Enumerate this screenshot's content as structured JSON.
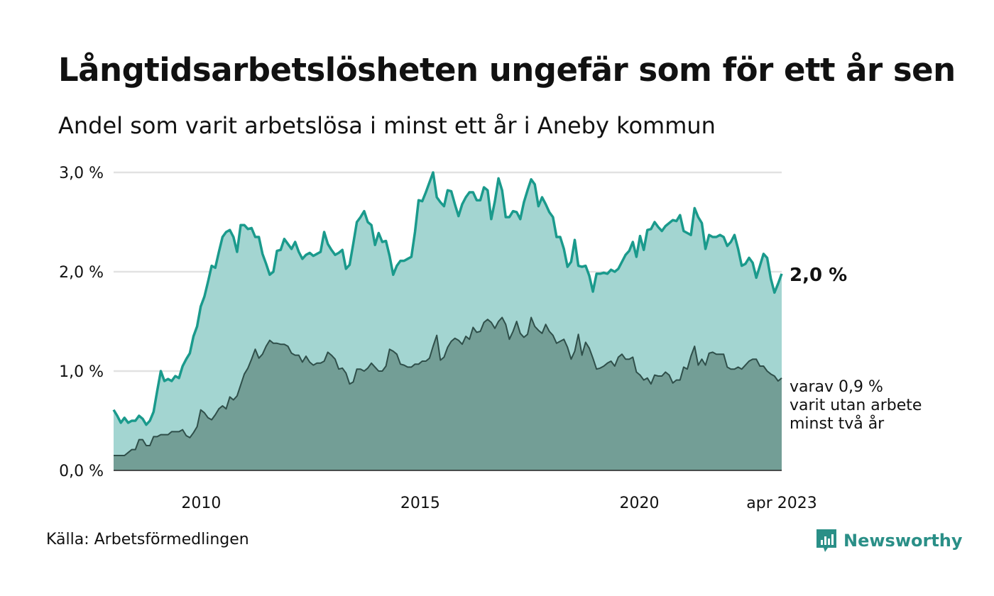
{
  "header": {
    "title": "Långtidsarbetslösheten ungefär som för ett år sen",
    "subtitle": "Andel som varit arbetslösa i minst ett år i Aneby kommun"
  },
  "footer": {
    "source": "Källa: Arbetsförmedlingen",
    "brand": "Newsworthy",
    "brand_icon": "bar-chart-speech-bubble-icon"
  },
  "colors": {
    "main_line": "#1a9a8c",
    "main_fill": "#a3d5d1",
    "sub_line": "#2f4f4a",
    "sub_fill": "#739e96",
    "grid": "#e2e2e2",
    "brand": "#2a8f87"
  },
  "chart_data": {
    "type": "area",
    "x_start": "2008-01",
    "x_end": "2023-04",
    "ylim": [
      0,
      3
    ],
    "y_ticks": [
      0,
      1,
      2,
      3
    ],
    "y_tick_labels": [
      "0,0 %",
      "1,0 %",
      "2,0 %",
      "3,0 %"
    ],
    "x_ticks": [
      2010,
      2015,
      2020
    ],
    "x_tick_labels": [
      "2010",
      "2015",
      "2020"
    ],
    "x_end_label": "apr 2023",
    "grid": true,
    "series": [
      {
        "key": "main",
        "end_label": "2,0 %",
        "values": [
          0.61,
          0.55,
          0.48,
          0.53,
          0.48,
          0.5,
          0.5,
          0.55,
          0.52,
          0.46,
          0.5,
          0.59,
          0.8,
          1.0,
          0.9,
          0.92,
          0.9,
          0.95,
          0.93,
          1.05,
          1.12,
          1.18,
          1.35,
          1.45,
          1.65,
          1.75,
          1.9,
          2.06,
          2.04,
          2.2,
          2.35,
          2.4,
          2.42,
          2.35,
          2.2,
          2.47,
          2.47,
          2.43,
          2.44,
          2.35,
          2.35,
          2.18,
          2.08,
          1.97,
          2.0,
          2.21,
          2.22,
          2.33,
          2.28,
          2.23,
          2.3,
          2.2,
          2.13,
          2.17,
          2.19,
          2.16,
          2.18,
          2.2,
          2.4,
          2.28,
          2.22,
          2.17,
          2.19,
          2.22,
          2.03,
          2.07,
          2.28,
          2.5,
          2.55,
          2.61,
          2.5,
          2.47,
          2.27,
          2.39,
          2.3,
          2.31,
          2.16,
          1.97,
          2.06,
          2.11,
          2.11,
          2.13,
          2.15,
          2.4,
          2.72,
          2.71,
          2.8,
          2.9,
          3.0,
          2.75,
          2.7,
          2.66,
          2.82,
          2.81,
          2.68,
          2.56,
          2.68,
          2.75,
          2.8,
          2.8,
          2.72,
          2.72,
          2.85,
          2.82,
          2.53,
          2.71,
          2.94,
          2.82,
          2.55,
          2.55,
          2.61,
          2.6,
          2.53,
          2.7,
          2.82,
          2.93,
          2.88,
          2.66,
          2.75,
          2.68,
          2.6,
          2.55,
          2.35,
          2.35,
          2.23,
          2.05,
          2.1,
          2.32,
          2.06,
          2.05,
          2.06,
          1.96,
          1.8,
          1.98,
          1.98,
          1.99,
          1.98,
          2.02,
          2.0,
          2.03,
          2.1,
          2.17,
          2.21,
          2.3,
          2.15,
          2.36,
          2.22,
          2.42,
          2.43,
          2.5,
          2.45,
          2.41,
          2.46,
          2.49,
          2.52,
          2.51,
          2.57,
          2.41,
          2.39,
          2.37,
          2.64,
          2.55,
          2.49,
          2.23,
          2.37,
          2.35,
          2.35,
          2.37,
          2.35,
          2.26,
          2.3,
          2.37,
          2.23,
          2.06,
          2.08,
          2.14,
          2.09,
          1.94,
          2.06,
          2.18,
          2.14,
          1.93,
          1.79,
          1.88,
          1.98
        ]
      },
      {
        "key": "sub",
        "end_label": [
          "varav 0,9 %",
          "varit utan arbete",
          "minst två år"
        ],
        "values": [
          0.15,
          0.15,
          0.15,
          0.15,
          0.18,
          0.21,
          0.21,
          0.31,
          0.31,
          0.25,
          0.25,
          0.34,
          0.34,
          0.36,
          0.36,
          0.36,
          0.39,
          0.39,
          0.39,
          0.41,
          0.35,
          0.33,
          0.38,
          0.44,
          0.61,
          0.58,
          0.53,
          0.51,
          0.56,
          0.62,
          0.65,
          0.62,
          0.74,
          0.71,
          0.75,
          0.86,
          0.97,
          1.03,
          1.12,
          1.22,
          1.13,
          1.17,
          1.25,
          1.31,
          1.28,
          1.28,
          1.27,
          1.27,
          1.25,
          1.18,
          1.16,
          1.16,
          1.09,
          1.15,
          1.09,
          1.06,
          1.08,
          1.08,
          1.1,
          1.19,
          1.16,
          1.12,
          1.02,
          1.03,
          0.98,
          0.87,
          0.89,
          1.02,
          1.02,
          1.0,
          1.03,
          1.08,
          1.04,
          1.0,
          1.0,
          1.05,
          1.22,
          1.2,
          1.17,
          1.07,
          1.06,
          1.04,
          1.04,
          1.07,
          1.07,
          1.1,
          1.1,
          1.13,
          1.25,
          1.36,
          1.11,
          1.14,
          1.24,
          1.3,
          1.33,
          1.31,
          1.27,
          1.35,
          1.32,
          1.44,
          1.39,
          1.4,
          1.49,
          1.52,
          1.49,
          1.43,
          1.5,
          1.54,
          1.47,
          1.32,
          1.4,
          1.5,
          1.38,
          1.34,
          1.37,
          1.54,
          1.45,
          1.41,
          1.38,
          1.47,
          1.4,
          1.36,
          1.28,
          1.3,
          1.32,
          1.24,
          1.12,
          1.2,
          1.37,
          1.16,
          1.29,
          1.23,
          1.13,
          1.02,
          1.03,
          1.05,
          1.08,
          1.1,
          1.05,
          1.14,
          1.17,
          1.12,
          1.12,
          1.14,
          0.99,
          0.96,
          0.91,
          0.93,
          0.87,
          0.96,
          0.95,
          0.95,
          0.99,
          0.96,
          0.88,
          0.91,
          0.91,
          1.04,
          1.02,
          1.15,
          1.25,
          1.06,
          1.12,
          1.06,
          1.18,
          1.19,
          1.17,
          1.17,
          1.17,
          1.04,
          1.02,
          1.02,
          1.04,
          1.02,
          1.06,
          1.1,
          1.12,
          1.12,
          1.05,
          1.05,
          1.0,
          0.97,
          0.95,
          0.9,
          0.93
        ]
      }
    ]
  }
}
